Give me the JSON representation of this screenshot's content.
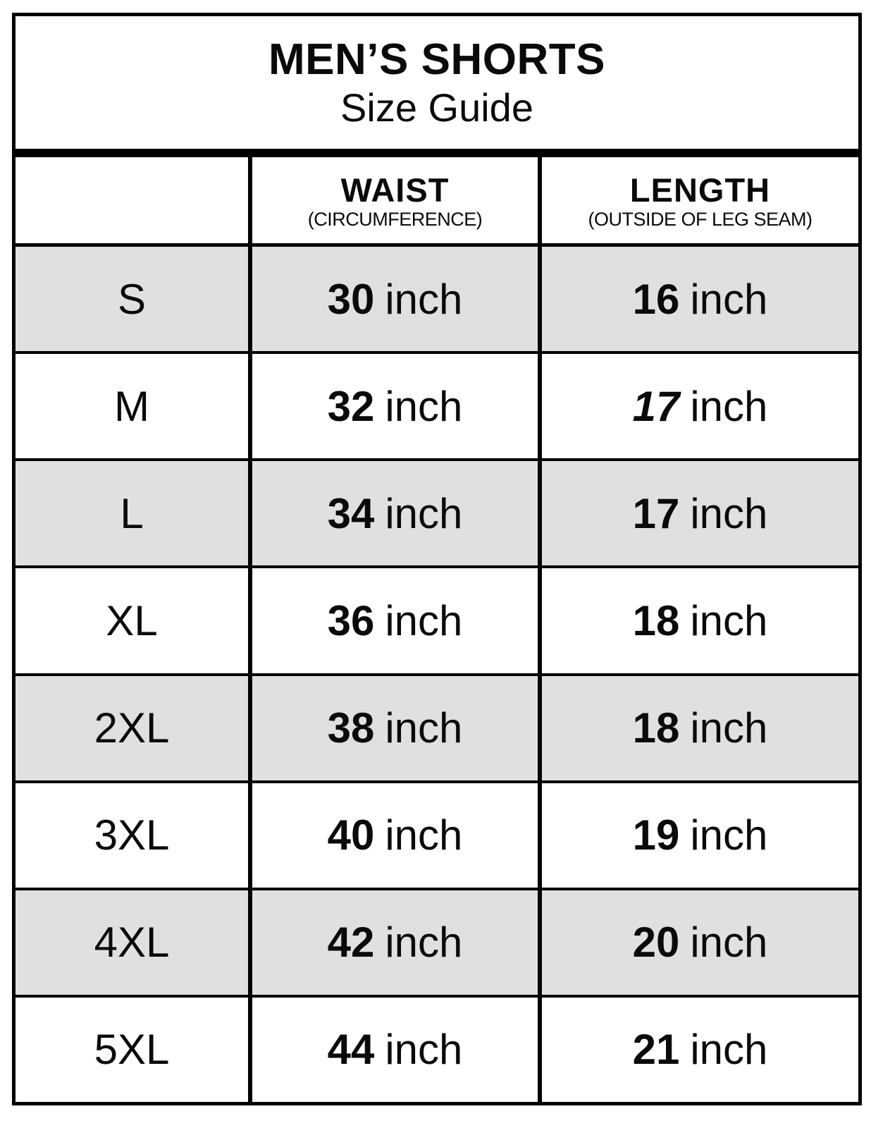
{
  "title": {
    "line1": "MEN’S SHORTS",
    "line2": "Size Guide"
  },
  "table": {
    "columns": [
      {
        "label": "",
        "sublabel": ""
      },
      {
        "label": "WAIST",
        "sublabel": "(CIRCUMFERENCE)"
      },
      {
        "label": "LENGTH",
        "sublabel": "(OUTSIDE OF LEG SEAM)"
      }
    ],
    "unit": "inch",
    "rows": [
      {
        "size": "S",
        "waist": "30",
        "length": "16",
        "shaded": true,
        "length_italic": false
      },
      {
        "size": "M",
        "waist": "32",
        "length": "17",
        "shaded": false,
        "length_italic": true
      },
      {
        "size": "L",
        "waist": "34",
        "length": "17",
        "shaded": true,
        "length_italic": false
      },
      {
        "size": "XL",
        "waist": "36",
        "length": "18",
        "shaded": false,
        "length_italic": false
      },
      {
        "size": "2XL",
        "waist": "38",
        "length": "18",
        "shaded": true,
        "length_italic": false
      },
      {
        "size": "3XL",
        "waist": "40",
        "length": "19",
        "shaded": false,
        "length_italic": false
      },
      {
        "size": "4XL",
        "waist": "42",
        "length": "20",
        "shaded": true,
        "length_italic": false
      },
      {
        "size": "5XL",
        "waist": "44",
        "length": "21",
        "shaded": false,
        "length_italic": false
      }
    ]
  },
  "colors": {
    "shaded_row": "#e0e0e0",
    "border": "#000000",
    "text": "#0a0a0a",
    "background": "#ffffff"
  }
}
